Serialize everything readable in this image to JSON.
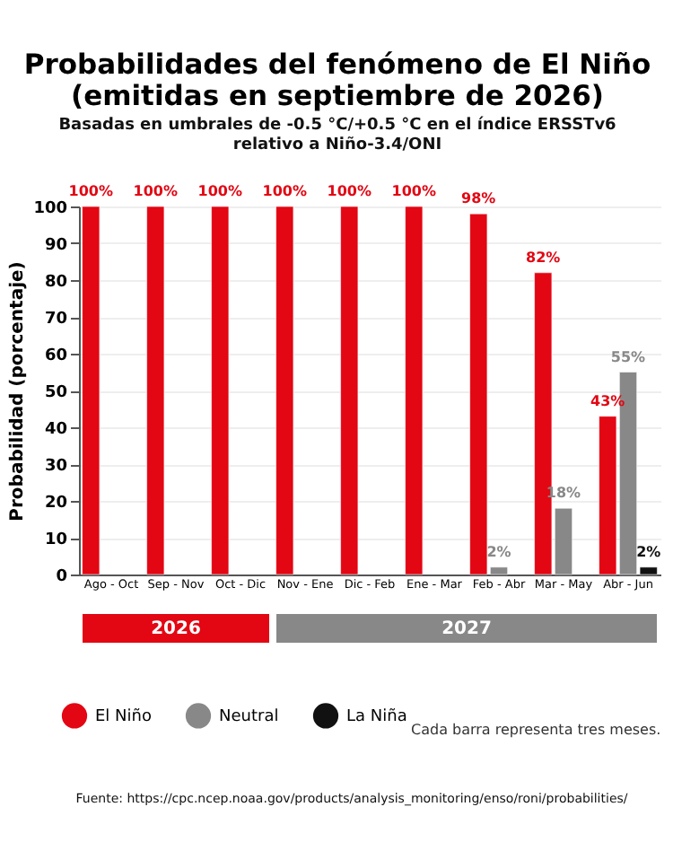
{
  "chart_data": {
    "type": "bar",
    "title": [
      "Probabilidades del fenómeno de El Niño",
      "(emitidas en septiembre de 2026)"
    ],
    "subtitle": [
      "Basadas en umbrales de -0.5 °C/+0.5 °C en el índice ERSSTv6",
      "relativo a Niño-3.4/ONI"
    ],
    "ylabel": "Probabilidad (porcentaje)",
    "categories": [
      "Ago - Oct",
      "Sep - Nov",
      "Oct - Dic",
      "Nov - Ene",
      "Dic - Feb",
      "Ene - Mar",
      "Feb - Abr",
      "Mar - May",
      "Abr - Jun"
    ],
    "series": [
      {
        "name": "El Niño",
        "color": "#e30613",
        "values": [
          100,
          100,
          100,
          100,
          100,
          100,
          98,
          82,
          43
        ],
        "value_labels": [
          "100%",
          "100%",
          "100%",
          "100%",
          "100%",
          "100%",
          "98%",
          "82%",
          "43%"
        ]
      },
      {
        "name": "Neutral",
        "color": "#888888",
        "values": [
          null,
          null,
          null,
          null,
          null,
          null,
          2,
          18,
          55
        ],
        "value_labels": [
          null,
          null,
          null,
          null,
          null,
          null,
          "2%",
          "18%",
          "55%"
        ]
      },
      {
        "name": "La Niña",
        "color": "#111111",
        "values": [
          null,
          null,
          null,
          null,
          null,
          null,
          null,
          null,
          2
        ],
        "value_labels": [
          null,
          null,
          null,
          null,
          null,
          null,
          null,
          null,
          "2%"
        ]
      }
    ],
    "ylim": [
      0,
      100
    ],
    "yticks": [
      0,
      10,
      20,
      30,
      40,
      50,
      60,
      70,
      80,
      90,
      100
    ],
    "grid": "y",
    "legend": "bottom",
    "annotations": [
      "2026",
      "2027",
      "Cada barra representa tres meses.",
      "Fuente: https://cpc.ncep.noaa.gov/products/analysis_monitoring/enso/roni/probabilities/"
    ]
  }
}
